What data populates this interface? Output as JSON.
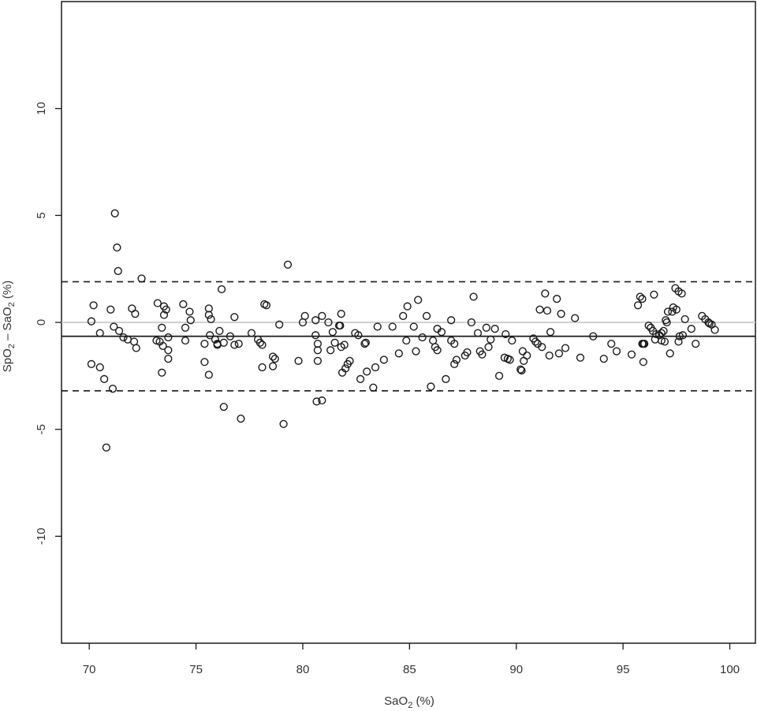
{
  "chart_data": {
    "type": "scatter",
    "title": "",
    "xlabel": {
      "base": "SaO",
      "sub": "2",
      "tail": " (%)"
    },
    "ylabel": {
      "a": "SpO",
      "a_sub": "2",
      "mid": " – SaO",
      "b_sub": "2",
      "tail": " (%)"
    },
    "xlim": [
      68.7,
      101.2
    ],
    "ylim": [
      -15,
      15
    ],
    "x_ticks": [
      70,
      75,
      80,
      85,
      90,
      95,
      100
    ],
    "x_tick_labels": [
      "70",
      "75",
      "80",
      "85",
      "90",
      "95",
      "100"
    ],
    "y_ticks": [
      -10,
      -5,
      0,
      5,
      10
    ],
    "y_tick_labels": [
      "-10",
      "-5",
      "0",
      "5",
      "10"
    ],
    "grid": false,
    "reference_lines": [
      {
        "name": "zero",
        "y": 0,
        "style": "solid",
        "color": "#c8c8c8"
      },
      {
        "name": "mean-bias",
        "y": -0.65,
        "style": "solid",
        "color": "#1a1a1a"
      },
      {
        "name": "upper-limit",
        "y": 1.9,
        "style": "dashed",
        "color": "#1a1a1a"
      },
      {
        "name": "lower-limit",
        "y": -3.2,
        "style": "dashed",
        "color": "#1a1a1a"
      }
    ],
    "series": [
      {
        "points": [
          [
            70.1,
            0.05
          ],
          [
            70.2,
            0.8
          ],
          [
            70.5,
            -0.5
          ],
          [
            70.1,
            -1.95
          ],
          [
            70.5,
            -2.1
          ],
          [
            70.7,
            -2.65
          ],
          [
            70.8,
            -5.85
          ],
          [
            71.0,
            0.6
          ],
          [
            71.1,
            -3.1
          ],
          [
            71.2,
            5.1
          ],
          [
            71.15,
            -0.2
          ],
          [
            71.3,
            3.5
          ],
          [
            71.35,
            2.4
          ],
          [
            71.4,
            -0.4
          ],
          [
            71.6,
            -0.7
          ],
          [
            71.8,
            -0.8
          ],
          [
            72.0,
            0.65
          ],
          [
            72.1,
            -0.9
          ],
          [
            72.15,
            0.4
          ],
          [
            72.2,
            -1.2
          ],
          [
            72.45,
            2.05
          ],
          [
            73.2,
            0.9
          ],
          [
            73.15,
            -0.85
          ],
          [
            73.3,
            -0.9
          ],
          [
            73.4,
            -0.25
          ],
          [
            73.5,
            0.75
          ],
          [
            73.5,
            0.35
          ],
          [
            73.45,
            -1.1
          ],
          [
            73.4,
            -2.35
          ],
          [
            73.6,
            0.6
          ],
          [
            73.7,
            -0.7
          ],
          [
            73.7,
            -1.3
          ],
          [
            73.7,
            -1.7
          ],
          [
            74.4,
            0.85
          ],
          [
            74.5,
            -0.25
          ],
          [
            74.5,
            -0.85
          ],
          [
            74.7,
            0.5
          ],
          [
            74.75,
            0.1
          ],
          [
            75.4,
            -1.0
          ],
          [
            75.4,
            -1.85
          ],
          [
            75.6,
            0.65
          ],
          [
            75.6,
            0.35
          ],
          [
            75.7,
            0.15
          ],
          [
            75.65,
            -0.6
          ],
          [
            75.6,
            -2.45
          ],
          [
            75.9,
            -0.8
          ],
          [
            76.0,
            -1.0
          ],
          [
            76.0,
            -1.05
          ],
          [
            76.1,
            -0.4
          ],
          [
            76.2,
            1.55
          ],
          [
            76.3,
            -0.95
          ],
          [
            76.3,
            -3.95
          ],
          [
            76.6,
            -0.65
          ],
          [
            76.8,
            0.25
          ],
          [
            76.8,
            -1.05
          ],
          [
            77.0,
            -1.0
          ],
          [
            77.1,
            -4.5
          ],
          [
            77.6,
            -0.5
          ],
          [
            77.9,
            -0.8
          ],
          [
            78.1,
            -1.05
          ],
          [
            78.0,
            -0.95
          ],
          [
            78.2,
            0.85
          ],
          [
            78.3,
            0.8
          ],
          [
            78.1,
            -2.1
          ],
          [
            78.6,
            -2.05
          ],
          [
            78.7,
            -1.7
          ],
          [
            78.6,
            -1.6
          ],
          [
            78.9,
            -0.1
          ],
          [
            79.1,
            -4.75
          ],
          [
            79.3,
            2.7
          ],
          [
            79.8,
            -1.8
          ],
          [
            80.0,
            0.0
          ],
          [
            80.1,
            0.3
          ],
          [
            80.6,
            -0.6
          ],
          [
            80.6,
            0.1
          ],
          [
            80.7,
            -1.0
          ],
          [
            80.7,
            -1.3
          ],
          [
            80.7,
            -1.8
          ],
          [
            80.65,
            -3.7
          ],
          [
            80.9,
            -3.65
          ],
          [
            80.9,
            0.3
          ],
          [
            81.2,
            0.0
          ],
          [
            81.3,
            -1.3
          ],
          [
            81.5,
            -0.95
          ],
          [
            81.4,
            -0.45
          ],
          [
            81.7,
            -0.15
          ],
          [
            81.75,
            -0.15
          ],
          [
            81.8,
            0.4
          ],
          [
            81.8,
            -1.15
          ],
          [
            81.85,
            -2.35
          ],
          [
            81.95,
            -1.05
          ],
          [
            82.0,
            -2.15
          ],
          [
            82.1,
            -1.95
          ],
          [
            82.2,
            -1.8
          ],
          [
            82.45,
            -0.5
          ],
          [
            82.6,
            -0.6
          ],
          [
            82.7,
            -2.65
          ],
          [
            82.9,
            -1.0
          ],
          [
            82.95,
            -0.95
          ],
          [
            83.0,
            -2.3
          ],
          [
            83.3,
            -3.05
          ],
          [
            83.4,
            -2.1
          ],
          [
            83.5,
            -0.2
          ],
          [
            83.8,
            -1.75
          ],
          [
            84.2,
            -0.2
          ],
          [
            84.5,
            -1.45
          ],
          [
            84.7,
            0.3
          ],
          [
            84.9,
            0.75
          ],
          [
            84.85,
            -0.85
          ],
          [
            85.2,
            -0.2
          ],
          [
            85.3,
            -1.35
          ],
          [
            85.4,
            1.05
          ],
          [
            85.6,
            -0.7
          ],
          [
            85.8,
            0.3
          ],
          [
            86.0,
            -3.0
          ],
          [
            86.1,
            -0.85
          ],
          [
            86.2,
            -1.15
          ],
          [
            86.3,
            -1.3
          ],
          [
            86.3,
            -0.3
          ],
          [
            86.5,
            -0.45
          ],
          [
            86.7,
            -2.65
          ],
          [
            86.95,
            0.1
          ],
          [
            86.95,
            -0.85
          ],
          [
            87.1,
            -1.0
          ],
          [
            87.1,
            -1.95
          ],
          [
            87.2,
            -1.75
          ],
          [
            87.6,
            -1.55
          ],
          [
            87.7,
            -1.4
          ],
          [
            87.9,
            0.0
          ],
          [
            88.0,
            1.2
          ],
          [
            88.2,
            -0.5
          ],
          [
            88.3,
            -1.35
          ],
          [
            88.4,
            -1.5
          ],
          [
            88.6,
            -0.25
          ],
          [
            88.7,
            -1.15
          ],
          [
            88.8,
            -0.8
          ],
          [
            89.0,
            -0.3
          ],
          [
            89.2,
            -2.5
          ],
          [
            89.45,
            -1.65
          ],
          [
            89.5,
            -0.55
          ],
          [
            89.6,
            -1.7
          ],
          [
            89.7,
            -1.75
          ],
          [
            89.8,
            -0.85
          ],
          [
            90.2,
            -2.2
          ],
          [
            90.25,
            -2.25
          ],
          [
            90.3,
            -1.35
          ],
          [
            90.35,
            -1.8
          ],
          [
            90.5,
            -1.55
          ],
          [
            90.8,
            -0.75
          ],
          [
            90.9,
            -0.9
          ],
          [
            91.0,
            -1.0
          ],
          [
            91.1,
            0.6
          ],
          [
            91.2,
            -1.15
          ],
          [
            91.35,
            1.35
          ],
          [
            91.45,
            0.55
          ],
          [
            91.55,
            -1.55
          ],
          [
            91.6,
            -0.45
          ],
          [
            91.9,
            1.1
          ],
          [
            92.0,
            -1.45
          ],
          [
            92.1,
            0.4
          ],
          [
            92.3,
            -1.2
          ],
          [
            92.75,
            0.2
          ],
          [
            93.0,
            -1.65
          ],
          [
            93.6,
            -0.65
          ],
          [
            94.1,
            -1.7
          ],
          [
            94.45,
            -1.0
          ],
          [
            94.7,
            -1.35
          ],
          [
            95.4,
            -1.5
          ],
          [
            95.7,
            0.8
          ],
          [
            95.8,
            1.2
          ],
          [
            95.9,
            1.1
          ],
          [
            95.9,
            -1.0
          ],
          [
            95.95,
            -1.0
          ],
          [
            95.95,
            -1.85
          ],
          [
            96.0,
            -1.0
          ],
          [
            96.2,
            -0.15
          ],
          [
            96.3,
            -0.25
          ],
          [
            96.4,
            -0.4
          ],
          [
            96.45,
            1.3
          ],
          [
            96.55,
            -0.55
          ],
          [
            96.5,
            -0.8
          ],
          [
            96.7,
            -0.6
          ],
          [
            96.8,
            -0.5
          ],
          [
            96.8,
            -0.85
          ],
          [
            96.95,
            -0.9
          ],
          [
            96.9,
            -0.4
          ],
          [
            97.0,
            0.1
          ],
          [
            97.05,
            0.0
          ],
          [
            97.1,
            0.5
          ],
          [
            97.2,
            -1.45
          ],
          [
            97.3,
            0.5
          ],
          [
            97.35,
            0.7
          ],
          [
            97.45,
            1.6
          ],
          [
            97.5,
            0.6
          ],
          [
            97.6,
            -0.9
          ],
          [
            97.6,
            1.45
          ],
          [
            97.65,
            -0.65
          ],
          [
            97.75,
            1.35
          ],
          [
            97.8,
            -0.6
          ],
          [
            97.9,
            0.15
          ],
          [
            98.2,
            -0.3
          ],
          [
            98.4,
            -1.0
          ],
          [
            98.7,
            0.3
          ],
          [
            98.85,
            0.15
          ],
          [
            99.0,
            0.0
          ],
          [
            99.05,
            -0.05
          ],
          [
            99.15,
            -0.1
          ],
          [
            99.3,
            -0.35
          ]
        ]
      }
    ]
  }
}
